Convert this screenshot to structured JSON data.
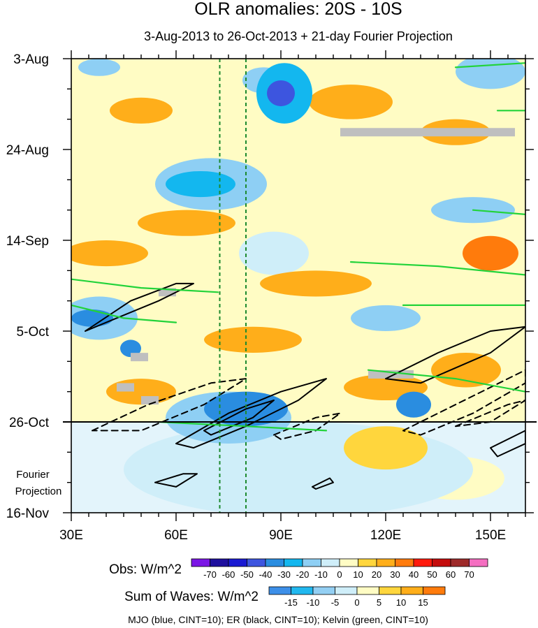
{
  "chart_data": {
    "type": "heatmap",
    "title": "OLR anomalies: 20S - 10S",
    "subtitle": "3-Aug-2013 to 26-Oct-2013 + 21-day Fourier Projection",
    "x_axis": {
      "label": "",
      "range": [
        30,
        160
      ],
      "ticks": [
        {
          "value": 30,
          "label": "30E"
        },
        {
          "value": 60,
          "label": "60E"
        },
        {
          "value": 90,
          "label": "90E"
        },
        {
          "value": 120,
          "label": "120E"
        },
        {
          "value": 150,
          "label": "150E"
        }
      ]
    },
    "y_axis": {
      "label": "",
      "range_days": [
        0,
        105
      ],
      "ticks": [
        {
          "day": 0,
          "label": "3-Aug"
        },
        {
          "day": 21,
          "label": "24-Aug"
        },
        {
          "day": 42,
          "label": "14-Sep"
        },
        {
          "day": 63,
          "label": "5-Oct"
        },
        {
          "day": 84,
          "label": "26-Oct"
        },
        {
          "day": 105,
          "label": "16-Nov"
        }
      ]
    },
    "projection_start_day": 84,
    "projection_label_1": "Fourier",
    "projection_label_2": "Projection",
    "vertical_reference_lines_lon": [
      72.5,
      80
    ],
    "anomaly_blobs": [
      {
        "lon": 90,
        "day": 8,
        "rx": 4,
        "ry": 3,
        "value": -50
      },
      {
        "lon": 91,
        "day": 8,
        "rx": 8,
        "ry": 7,
        "value": -30
      },
      {
        "lon": 85,
        "day": 5,
        "rx": 6,
        "ry": 3,
        "value": -20
      },
      {
        "lon": 38,
        "day": 2,
        "rx": 6,
        "ry": 2,
        "value": -20
      },
      {
        "lon": 67,
        "day": 29,
        "rx": 10,
        "ry": 3,
        "value": -30
      },
      {
        "lon": 70,
        "day": 29,
        "rx": 16,
        "ry": 6,
        "value": -15
      },
      {
        "lon": 36,
        "day": 60,
        "rx": 6,
        "ry": 2,
        "value": -40
      },
      {
        "lon": 38,
        "day": 60,
        "rx": 11,
        "ry": 5,
        "value": -20
      },
      {
        "lon": 47,
        "day": 67,
        "rx": 3,
        "ry": 2,
        "value": -40
      },
      {
        "lon": 80,
        "day": 81,
        "rx": 12,
        "ry": 4,
        "value": -40
      },
      {
        "lon": 75,
        "day": 83,
        "rx": 18,
        "ry": 6,
        "value": -20
      },
      {
        "lon": 128,
        "day": 80,
        "rx": 5,
        "ry": 3,
        "value": -40
      },
      {
        "lon": 150,
        "day": 3,
        "rx": 10,
        "ry": 4,
        "value": -20
      },
      {
        "lon": 145,
        "day": 35,
        "rx": 12,
        "ry": 3,
        "value": -15
      },
      {
        "lon": 88,
        "day": 45,
        "rx": 10,
        "ry": 5,
        "value": -10
      },
      {
        "lon": 120,
        "day": 60,
        "rx": 10,
        "ry": 3,
        "value": -15
      },
      {
        "lon": 95,
        "day": 95,
        "rx": 50,
        "ry": 11,
        "value": -10
      },
      {
        "lon": 50,
        "day": 12,
        "rx": 9,
        "ry": 3,
        "value": 20
      },
      {
        "lon": 110,
        "day": 10,
        "rx": 12,
        "ry": 4,
        "value": 20
      },
      {
        "lon": 140,
        "day": 17,
        "rx": 10,
        "ry": 3,
        "value": 20
      },
      {
        "lon": 63,
        "day": 38,
        "rx": 14,
        "ry": 3,
        "value": 20
      },
      {
        "lon": 40,
        "day": 45,
        "rx": 12,
        "ry": 3,
        "value": 20
      },
      {
        "lon": 100,
        "day": 52,
        "rx": 16,
        "ry": 3,
        "value": 20
      },
      {
        "lon": 150,
        "day": 45,
        "rx": 8,
        "ry": 4,
        "value": 30
      },
      {
        "lon": 82,
        "day": 65,
        "rx": 14,
        "ry": 3,
        "value": 20
      },
      {
        "lon": 143,
        "day": 72,
        "rx": 10,
        "ry": 4,
        "value": 20
      },
      {
        "lon": 50,
        "day": 77,
        "rx": 10,
        "ry": 3,
        "value": 20
      },
      {
        "lon": 120,
        "day": 76,
        "rx": 12,
        "ry": 3,
        "value": 20
      },
      {
        "lon": 120,
        "day": 90,
        "rx": 12,
        "ry": 5,
        "value": 10
      },
      {
        "lon": 140,
        "day": 97,
        "rx": 14,
        "ry": 5,
        "value": 5
      }
    ],
    "missing_data_bars": [
      {
        "lon_start": 107,
        "lon_end": 157,
        "day": 17
      },
      {
        "lon_start": 115,
        "lon_end": 128,
        "day": 73
      },
      {
        "lon_start": 55,
        "lon_end": 60,
        "day": 54
      },
      {
        "lon_start": 47,
        "lon_end": 52,
        "day": 69
      },
      {
        "lon_start": 43,
        "lon_end": 48,
        "day": 76
      },
      {
        "lon_start": 50,
        "lon_end": 55,
        "day": 79
      }
    ],
    "wave_contours": [
      {
        "kind": "ER",
        "value": 10,
        "polyline": [
          [
            34,
            63
          ],
          [
            47,
            56
          ],
          [
            60,
            52
          ],
          [
            65,
            52
          ],
          [
            55,
            56
          ],
          [
            40,
            61
          ],
          [
            34,
            63
          ]
        ]
      },
      {
        "kind": "ER",
        "value": 10,
        "polyline": [
          [
            60,
            89
          ],
          [
            75,
            82
          ],
          [
            90,
            77
          ],
          [
            103,
            74
          ],
          [
            95,
            79
          ],
          [
            80,
            85
          ],
          [
            65,
            90
          ],
          [
            60,
            89
          ]
        ]
      },
      {
        "kind": "ER",
        "value": 10,
        "polyline": [
          [
            68,
            86
          ],
          [
            80,
            81
          ],
          [
            88,
            79
          ],
          [
            82,
            83
          ],
          [
            70,
            87
          ],
          [
            68,
            86
          ]
        ]
      },
      {
        "kind": "ER",
        "value": 10,
        "polyline": [
          [
            120,
            74
          ],
          [
            135,
            68
          ],
          [
            150,
            63
          ],
          [
            160,
            62
          ],
          [
            150,
            68
          ],
          [
            130,
            75
          ],
          [
            120,
            74
          ]
        ]
      },
      {
        "kind": "ER",
        "value": 10,
        "polyline": [
          [
            150,
            90
          ],
          [
            160,
            86
          ],
          [
            160,
            89
          ],
          [
            152,
            92
          ],
          [
            150,
            90
          ]
        ]
      },
      {
        "kind": "ER",
        "value": 10,
        "polyline": [
          [
            54,
            98
          ],
          [
            62,
            96
          ],
          [
            66,
            96
          ],
          [
            60,
            99
          ],
          [
            54,
            98
          ]
        ]
      },
      {
        "kind": "ER",
        "value": 10,
        "polyline": [
          [
            99,
            99
          ],
          [
            104,
            97
          ],
          [
            105,
            98
          ],
          [
            100,
            99.5
          ],
          [
            99,
            99
          ]
        ]
      },
      {
        "kind": "ER",
        "value": -10,
        "polyline": [
          [
            36,
            86
          ],
          [
            52,
            80
          ],
          [
            70,
            75
          ],
          [
            80,
            74
          ],
          [
            68,
            80
          ],
          [
            50,
            86
          ],
          [
            36,
            86
          ]
        ]
      },
      {
        "kind": "ER",
        "value": -10,
        "polyline": [
          [
            88,
            87
          ],
          [
            100,
            83
          ],
          [
            107,
            82
          ],
          [
            100,
            86
          ],
          [
            90,
            88
          ],
          [
            88,
            87
          ]
        ]
      },
      {
        "kind": "ER",
        "value": -10,
        "polyline": [
          [
            125,
            86
          ],
          [
            140,
            80
          ],
          [
            160,
            72
          ],
          [
            160,
            75
          ],
          [
            145,
            82
          ],
          [
            130,
            87
          ],
          [
            125,
            86
          ]
        ]
      },
      {
        "kind": "ER",
        "value": -10,
        "polyline": [
          [
            140,
            85
          ],
          [
            155,
            80
          ],
          [
            160,
            79
          ],
          [
            150,
            84
          ],
          [
            140,
            85
          ]
        ]
      },
      {
        "kind": "Kelvin",
        "value": 10,
        "polyline": [
          [
            30,
            51
          ],
          [
            50,
            53
          ],
          [
            72,
            54
          ]
        ]
      },
      {
        "kind": "Kelvin",
        "value": 10,
        "polyline": [
          [
            30,
            57
          ],
          [
            45,
            60
          ],
          [
            60,
            61
          ]
        ]
      },
      {
        "kind": "Kelvin",
        "value": 10,
        "polyline": [
          [
            55,
            84
          ],
          [
            80,
            85
          ],
          [
            103,
            86
          ]
        ]
      },
      {
        "kind": "Kelvin",
        "value": 10,
        "polyline": [
          [
            115,
            72
          ],
          [
            140,
            74
          ],
          [
            160,
            77
          ]
        ]
      },
      {
        "kind": "Kelvin",
        "value": 10,
        "polyline": [
          [
            110,
            47
          ],
          [
            135,
            48
          ],
          [
            160,
            50
          ]
        ]
      },
      {
        "kind": "Kelvin",
        "value": 10,
        "polyline": [
          [
            140,
            2
          ],
          [
            160,
            1
          ]
        ]
      },
      {
        "kind": "Kelvin",
        "value": 10,
        "polyline": [
          [
            145,
            35
          ],
          [
            160,
            36
          ]
        ]
      },
      {
        "kind": "Kelvin",
        "value": 10,
        "polyline": [
          [
            125,
            57
          ],
          [
            160,
            57
          ]
        ]
      },
      {
        "kind": "Kelvin",
        "value": 10,
        "polyline": [
          [
            152,
            12
          ],
          [
            160,
            12
          ]
        ]
      }
    ],
    "colorbars": [
      {
        "label": "Obs: W/m^2",
        "ticks": [
          "-70",
          "-60",
          "-50",
          "-40",
          "-30",
          "-20",
          "-10",
          "0",
          "10",
          "20",
          "30",
          "40",
          "50",
          "60",
          "70"
        ],
        "colors": [
          "#7b16e5",
          "#1e0f9e",
          "#1a1ad2",
          "#3d55df",
          "#2a8de0",
          "#13b7ef",
          "#8ecff4",
          "#cfeef9",
          "#fffcc4",
          "#ffd63d",
          "#ffae1a",
          "#ff7b0c",
          "#ff1a0c",
          "#c40c0c",
          "#9e2a2a",
          "#f56fc1"
        ]
      },
      {
        "label": "Sum of Waves: W/m^2",
        "ticks": [
          "-15",
          "-10",
          "-5",
          "0",
          "5",
          "10",
          "15"
        ],
        "colors": [
          "#3d8fe8",
          "#21b8ef",
          "#93cff3",
          "#cfeef9",
          "#fffcc4",
          "#ffd63d",
          "#ffae1a",
          "#ff7b0c"
        ]
      }
    ],
    "footer": "MJO (blue, CINT=10); ER (black, CINT=10); Kelvin (green, CINT=10)"
  }
}
